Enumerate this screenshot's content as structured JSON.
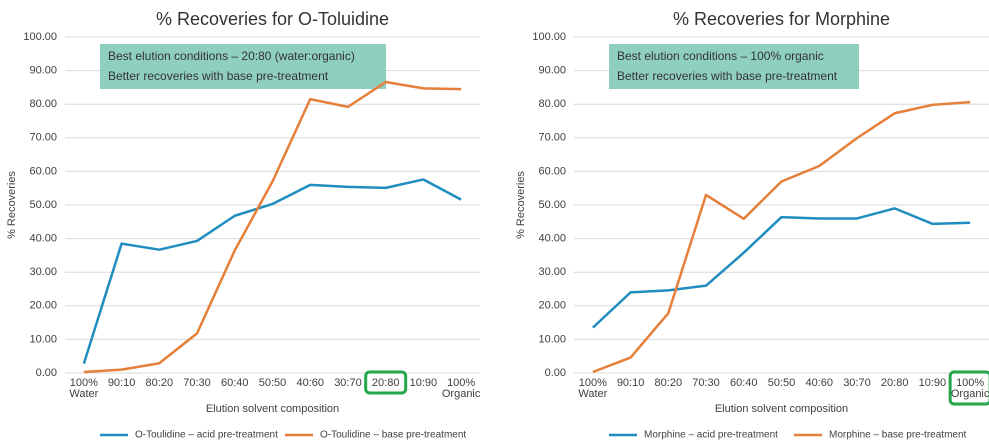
{
  "chart_data": [
    {
      "type": "line",
      "title": "% Recoveries for O-Toluidine",
      "x_label": "Elution solvent composition",
      "y_label": "% Recoveries",
      "annotation": [
        "Best elution conditions – 20:80 (water:organic)",
        "Better recoveries with base pre-treatment"
      ],
      "categories": [
        "100% Water",
        "90:10",
        "80:20",
        "70:30",
        "60:40",
        "50:50",
        "40:60",
        "30:70",
        "20:80",
        "10:90",
        "100% Organic"
      ],
      "highlight_index": 8,
      "series": [
        {
          "name": "O-Toulidine – acid pre-treatment",
          "color": "#1f8dbf",
          "values": [
            2.8,
            38.5,
            36.7,
            39.3,
            46.8,
            50.3,
            56.0,
            55.4,
            55.1,
            57.6,
            51.6
          ]
        },
        {
          "name": "O-Toulidine – base pre-treatment",
          "color": "#e57f3a",
          "values": [
            0.3,
            1.0,
            2.9,
            11.8,
            36.5,
            57.0,
            81.5,
            79.2,
            86.6,
            84.7,
            84.5
          ]
        }
      ],
      "ylim": [
        0,
        100
      ],
      "yticks": [
        {
          "value": 0,
          "label": "0.00"
        },
        {
          "value": 10,
          "label": "10.00"
        },
        {
          "value": 20,
          "label": "20.00"
        },
        {
          "value": 30,
          "label": "30.00"
        },
        {
          "value": 40,
          "label": "40.00"
        },
        {
          "value": 50,
          "label": "50.00"
        },
        {
          "value": 60,
          "label": "60.00"
        },
        {
          "value": 70,
          "label": "70.00"
        },
        {
          "value": 80,
          "label": "80.00"
        },
        {
          "value": 90,
          "label": "90.00"
        },
        {
          "value": 100,
          "label": "100.00"
        }
      ],
      "grid": true
    },
    {
      "type": "line",
      "title": "% Recoveries for Morphine",
      "x_label": "Elution solvent composition",
      "y_label": "% Recoveries",
      "annotation": [
        "Best elution conditions – 100% organic",
        "Better recoveries with base pre-treatment"
      ],
      "categories": [
        "100% Water",
        "90:10",
        "80:20",
        "70:30",
        "60:40",
        "50:50",
        "40:60",
        "30:70",
        "20:80",
        "10:90",
        "100% Organic"
      ],
      "highlight_index": 10,
      "series": [
        {
          "name": "Morphine – acid pre-treatment",
          "color": "#1f8dbf",
          "values": [
            13.5,
            24.0,
            24.6,
            26.0,
            35.8,
            46.4,
            46.0,
            46.0,
            49.0,
            44.4,
            44.7
          ]
        },
        {
          "name": "Morphine – base pre-treatment",
          "color": "#e57f3a",
          "values": [
            0.3,
            4.6,
            17.8,
            53.0,
            45.9,
            57.0,
            61.6,
            69.9,
            77.3,
            79.8,
            80.6
          ]
        }
      ],
      "ylim": [
        0,
        100
      ],
      "yticks": [
        {
          "value": 0,
          "label": "0.00"
        },
        {
          "value": 10,
          "label": "10.00"
        },
        {
          "value": 20,
          "label": "20.00"
        },
        {
          "value": 30,
          "label": "30.00"
        },
        {
          "value": 40,
          "label": "40.00"
        },
        {
          "value": 50,
          "label": "50.00"
        },
        {
          "value": 60,
          "label": "60.00"
        },
        {
          "value": 70,
          "label": "70.00"
        },
        {
          "value": 80,
          "label": "80.00"
        },
        {
          "value": 90,
          "label": "90.00"
        },
        {
          "value": 100,
          "label": "100.00"
        }
      ],
      "grid": true
    }
  ]
}
